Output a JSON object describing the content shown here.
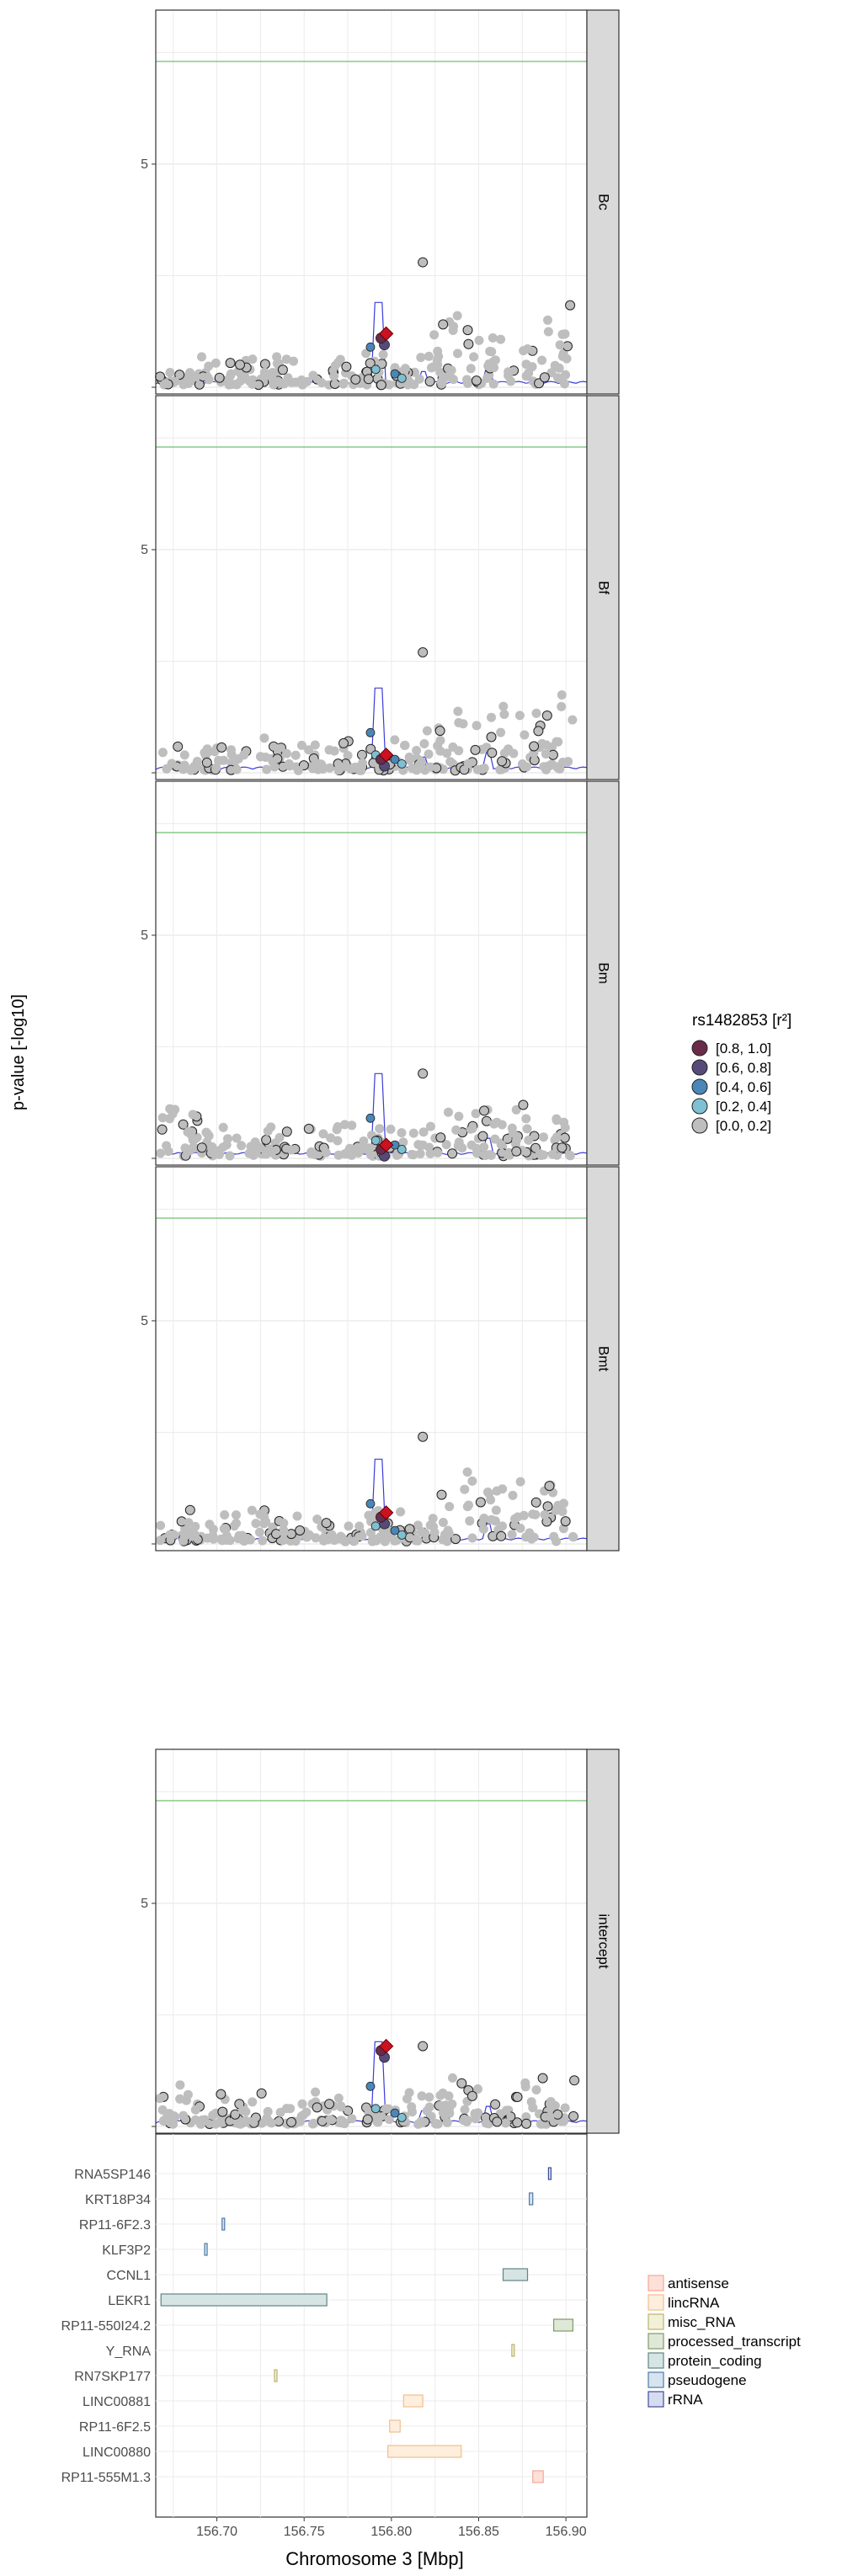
{
  "chart_data": {
    "type": "scatter",
    "ylabel": "p-value [-log10]",
    "xlabel": "Chromosome 3 [Mbp]",
    "x_ticks": [
      "156.70",
      "156.75",
      "156.80",
      "156.85",
      "156.90"
    ],
    "x_tick_values": [
      156.7,
      156.75,
      156.8,
      156.85,
      156.9
    ],
    "xlim": [
      156.665,
      156.912
    ],
    "ylim": [
      0,
      8.3
    ],
    "y_ticks": [
      5
    ],
    "significance_line": 7.3,
    "legend": {
      "title": "rs1482853 [r²]",
      "entries": [
        {
          "label": "[0.8, 1.0]",
          "color": "#6b2b4a"
        },
        {
          "label": "[0.6, 0.8]",
          "color": "#574a7a"
        },
        {
          "label": "[0.4, 0.6]",
          "color": "#4a86b8"
        },
        {
          "label": "[0.2, 0.4]",
          "color": "#7ec0d2"
        },
        {
          "label": "[0.0, 0.2]",
          "color": "#bebebe"
        }
      ]
    },
    "panels": [
      {
        "name": "Bc",
        "lead_y": 1.2,
        "top_y": 2.8,
        "peak": 1.9
      },
      {
        "name": "Bf",
        "lead_y": 0.4,
        "top_y": 2.7,
        "peak": 1.9
      },
      {
        "name": "Bm",
        "lead_y": 0.3,
        "top_y": 1.9,
        "peak": 1.9
      },
      {
        "name": "Bmt",
        "lead_y": 0.7,
        "top_y": 2.4,
        "peak": 1.9
      },
      {
        "name": "intercept",
        "lead_y": 1.8,
        "top_y": 1.8,
        "peak": 1.9
      }
    ],
    "gene_track": {
      "genes": [
        {
          "name": "RNA5SP146",
          "start": 156.89,
          "end": 156.891,
          "type": "rRNA"
        },
        {
          "name": "KRT18P34",
          "start": 156.879,
          "end": 156.881,
          "type": "pseudogene"
        },
        {
          "name": "RP11-6F2.3",
          "start": 156.703,
          "end": 156.704,
          "type": "pseudogene"
        },
        {
          "name": "KLF3P2",
          "start": 156.693,
          "end": 156.694,
          "type": "pseudogene"
        },
        {
          "name": "CCNL1",
          "start": 156.864,
          "end": 156.878,
          "type": "protein_coding"
        },
        {
          "name": "LEKR1",
          "start": 156.668,
          "end": 156.763,
          "type": "protein_coding"
        },
        {
          "name": "RP11-550I24.2",
          "start": 156.893,
          "end": 156.904,
          "type": "processed_transcript"
        },
        {
          "name": "Y_RNA",
          "start": 156.869,
          "end": 156.87,
          "type": "misc_RNA"
        },
        {
          "name": "RN7SKP177",
          "start": 156.733,
          "end": 156.734,
          "type": "misc_RNA"
        },
        {
          "name": "LINC00881",
          "start": 156.807,
          "end": 156.818,
          "type": "lincRNA"
        },
        {
          "name": "RP11-6F2.5",
          "start": 156.799,
          "end": 156.805,
          "type": "lincRNA"
        },
        {
          "name": "LINC00880",
          "start": 156.798,
          "end": 156.84,
          "type": "lincRNA"
        },
        {
          "name": "RP11-555M1.3",
          "start": 156.881,
          "end": 156.887,
          "type": "antisense"
        }
      ],
      "legend": [
        {
          "label": "antisense",
          "fill": "#fde0d9",
          "stroke": "#f4a896"
        },
        {
          "label": "lincRNA",
          "fill": "#fdeede",
          "stroke": "#f2be8a"
        },
        {
          "label": "misc_RNA",
          "fill": "#f1f0d8",
          "stroke": "#b9b36b"
        },
        {
          "label": "processed_transcript",
          "fill": "#dfe8d6",
          "stroke": "#7f9a66"
        },
        {
          "label": "protein_coding",
          "fill": "#d6e4e4",
          "stroke": "#5f8585"
        },
        {
          "label": "pseudogene",
          "fill": "#d7e3ef",
          "stroke": "#4d7aa6"
        },
        {
          "label": "rRNA",
          "fill": "#d6dcef",
          "stroke": "#3d4d9a"
        }
      ]
    }
  }
}
